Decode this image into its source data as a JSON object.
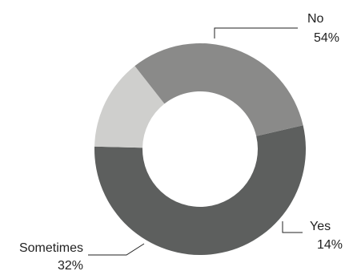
{
  "chart_data": {
    "type": "pie",
    "donut": true,
    "title": "",
    "legend": "none",
    "slices": [
      {
        "label": "No",
        "value": 54,
        "value_label": "54%",
        "color": "#5d5f5e"
      },
      {
        "label": "Yes",
        "value": 14,
        "value_label": "14%",
        "color": "#cfcfcd"
      },
      {
        "label": "Sometimes",
        "value": 32,
        "value_label": "32%",
        "color": "#8a8a89"
      }
    ]
  }
}
